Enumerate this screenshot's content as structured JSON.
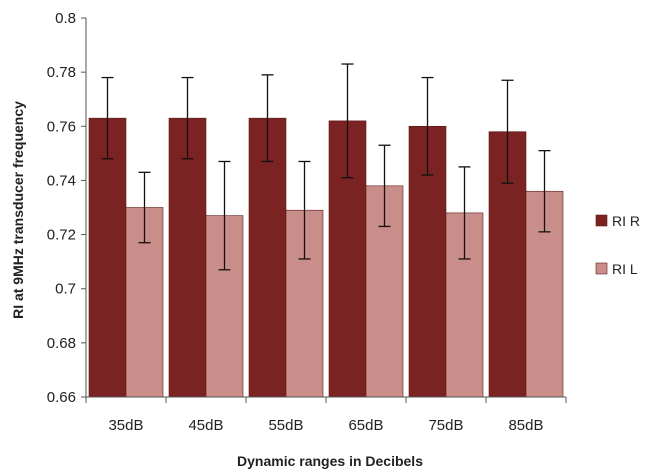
{
  "chart_data": {
    "type": "bar",
    "categories": [
      "35dB",
      "45dB",
      "55dB",
      "65dB",
      "75dB",
      "85dB"
    ],
    "series": [
      {
        "name": "RI R",
        "color": "#7b2222",
        "values": [
          0.763,
          0.763,
          0.763,
          0.762,
          0.76,
          0.758
        ],
        "error_low": [
          0.748,
          0.748,
          0.747,
          0.741,
          0.742,
          0.739
        ],
        "error_high": [
          0.778,
          0.778,
          0.779,
          0.783,
          0.778,
          0.777
        ]
      },
      {
        "name": "RI L",
        "color": "#c98e8a",
        "values": [
          0.73,
          0.727,
          0.729,
          0.738,
          0.728,
          0.736
        ],
        "error_low": [
          0.717,
          0.707,
          0.711,
          0.723,
          0.711,
          0.721
        ],
        "error_high": [
          0.743,
          0.747,
          0.747,
          0.753,
          0.745,
          0.751
        ]
      }
    ],
    "xlabel": "Dynamic ranges in Decibels",
    "ylabel": "RI  at 9MHz transducer frequency",
    "ylim": [
      0.66,
      0.8
    ],
    "yticks": [
      "0.66",
      "0.68",
      "0.7",
      "0.72",
      "0.74",
      "0.76",
      "0.78",
      "0.8"
    ],
    "grid": false,
    "legend_position": "right"
  }
}
